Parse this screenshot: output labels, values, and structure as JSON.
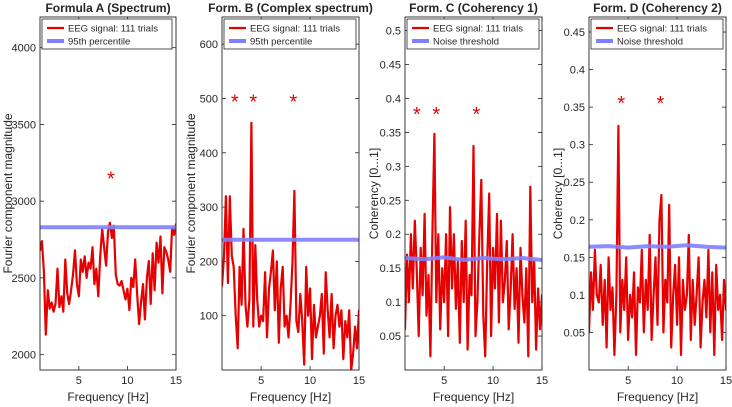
{
  "chart_data": [
    {
      "type": "line",
      "title": "Formula A (Spectrum)",
      "xlabel": "Frequency [Hz]",
      "ylabel": "Fourier component magnitude",
      "xlim": [
        1,
        15
      ],
      "ylim": [
        1900,
        4200
      ],
      "xticks": [
        5,
        10,
        15
      ],
      "yticks": [
        2000,
        2500,
        3000,
        3500,
        4000
      ],
      "legend_position": "top-left",
      "series": [
        {
          "name": "EEG signal: 111 trials",
          "color": "#e60000",
          "x": [
            1,
            1.2,
            1.4,
            1.6,
            1.8,
            2,
            2.2,
            2.4,
            2.6,
            2.8,
            3,
            3.2,
            3.4,
            3.6,
            3.8,
            4,
            4.2,
            4.4,
            4.6,
            4.8,
            5,
            5.2,
            5.4,
            5.6,
            5.8,
            6,
            6.2,
            6.4,
            6.6,
            6.8,
            7,
            7.2,
            7.4,
            7.6,
            7.8,
            8,
            8.2,
            8.4,
            8.6,
            8.8,
            9,
            9.2,
            9.4,
            9.6,
            9.8,
            10,
            10.2,
            10.4,
            10.6,
            10.8,
            11,
            11.2,
            11.4,
            11.6,
            11.8,
            12,
            12.2,
            12.4,
            12.6,
            12.8,
            13,
            13.2,
            13.4,
            13.6,
            13.8,
            14,
            14.2,
            14.4,
            14.6,
            14.8,
            15
          ],
          "y": [
            2680,
            2740,
            2540,
            2130,
            2420,
            2300,
            2340,
            2280,
            2330,
            2560,
            2310,
            2380,
            2280,
            2620,
            2400,
            2330,
            2420,
            2520,
            2680,
            2460,
            2380,
            2620,
            2540,
            2640,
            2500,
            2600,
            2560,
            2700,
            2460,
            2560,
            2380,
            2640,
            2820,
            2700,
            2580,
            2800,
            2860,
            2760,
            2840,
            2520,
            2460,
            2450,
            2480,
            2420,
            2360,
            2430,
            2290,
            2500,
            2440,
            2620,
            2400,
            2200,
            2340,
            2460,
            2230,
            2500,
            2610,
            2330,
            2660,
            2420,
            2730,
            2600,
            2770,
            2400,
            2700,
            2670,
            2620,
            2540,
            2830,
            2780,
            2850
          ]
        },
        {
          "name": "95th percentile",
          "color": "#7f7fff",
          "x": [
            1,
            15
          ],
          "y": [
            2830,
            2830
          ]
        }
      ],
      "markers": [
        {
          "x": 8.3,
          "y": 3160,
          "symbol": "*"
        }
      ]
    },
    {
      "type": "line",
      "title": "Form. B (Complex spectrum)",
      "xlabel": "Frequency [Hz]",
      "ylabel": "Fourier component magnitude",
      "xlim": [
        1,
        15
      ],
      "ylim": [
        0,
        650
      ],
      "xticks": [
        5,
        10,
        15
      ],
      "yticks": [
        100,
        200,
        300,
        400,
        500,
        600
      ],
      "legend_position": "top-left",
      "series": [
        {
          "name": "EEG signal: 111 trials",
          "color": "#e60000",
          "x": [
            1,
            1.2,
            1.4,
            1.6,
            1.8,
            2,
            2.2,
            2.4,
            2.6,
            2.8,
            3,
            3.2,
            3.4,
            3.6,
            3.8,
            4,
            4.2,
            4.4,
            4.6,
            4.8,
            5,
            5.2,
            5.4,
            5.6,
            5.8,
            6,
            6.2,
            6.4,
            6.6,
            6.8,
            7,
            7.2,
            7.4,
            7.6,
            7.8,
            8,
            8.2,
            8.4,
            8.6,
            8.8,
            9,
            9.2,
            9.4,
            9.6,
            9.8,
            10,
            10.2,
            10.4,
            10.6,
            10.8,
            11,
            11.2,
            11.4,
            11.6,
            11.8,
            12,
            12.2,
            12.4,
            12.6,
            12.8,
            13,
            13.2,
            13.4,
            13.6,
            13.8,
            14,
            14.2,
            14.4,
            14.6,
            14.8,
            15
          ],
          "y": [
            155,
            210,
            320,
            160,
            320,
            210,
            190,
            100,
            40,
            190,
            120,
            260,
            120,
            80,
            130,
            455,
            80,
            230,
            130,
            80,
            100,
            90,
            180,
            60,
            150,
            180,
            220,
            110,
            200,
            50,
            150,
            190,
            80,
            100,
            60,
            120,
            200,
            330,
            90,
            70,
            140,
            90,
            10,
            190,
            100,
            150,
            20,
            120,
            60,
            80,
            100,
            140,
            30,
            180,
            110,
            60,
            140,
            40,
            100,
            120,
            80,
            110,
            20,
            90,
            60,
            110,
            0,
            30,
            80,
            40,
            110
          ]
        },
        {
          "name": "95th percentile",
          "color": "#7f7fff",
          "x": [
            1,
            15
          ],
          "y": [
            240,
            240
          ]
        }
      ],
      "markers": [
        {
          "x": 2.3,
          "y": 498,
          "symbol": "*"
        },
        {
          "x": 4.2,
          "y": 498,
          "symbol": "*"
        },
        {
          "x": 8.3,
          "y": 498,
          "symbol": "*"
        }
      ]
    },
    {
      "type": "line",
      "title": "Form. C (Coherency 1)",
      "xlabel": "Frequency [Hz]",
      "ylabel": "Coherency [0...1]",
      "xlim": [
        1,
        15
      ],
      "ylim": [
        0,
        0.52
      ],
      "xticks": [
        5,
        10,
        15
      ],
      "yticks": [
        0.05,
        0.1,
        0.15,
        0.2,
        0.25,
        0.3,
        0.35,
        0.4,
        0.45,
        0.5
      ],
      "legend_position": "top-left",
      "series": [
        {
          "name": "EEG signal: 111 trials",
          "color": "#e60000",
          "x": [
            1,
            1.2,
            1.4,
            1.6,
            1.8,
            2,
            2.2,
            2.4,
            2.6,
            2.8,
            3,
            3.2,
            3.4,
            3.6,
            3.8,
            4,
            4.2,
            4.4,
            4.6,
            4.8,
            5,
            5.2,
            5.4,
            5.6,
            5.8,
            6,
            6.2,
            6.4,
            6.6,
            6.8,
            7,
            7.2,
            7.4,
            7.6,
            7.8,
            8,
            8.2,
            8.4,
            8.6,
            8.8,
            9,
            9.2,
            9.4,
            9.6,
            9.8,
            10,
            10.2,
            10.4,
            10.6,
            10.8,
            11,
            11.2,
            11.4,
            11.6,
            11.8,
            12,
            12.2,
            12.4,
            12.6,
            12.8,
            13,
            13.2,
            13.4,
            13.6,
            13.8,
            14,
            14.2,
            14.4,
            14.6,
            14.8,
            15
          ],
          "y": [
            0.06,
            0.17,
            0.1,
            0.2,
            0.12,
            0.22,
            0.15,
            0.05,
            0.18,
            0.11,
            0.23,
            0.08,
            0.14,
            0.02,
            0.2,
            0.348,
            0.1,
            0.2,
            0.06,
            0.15,
            0.1,
            0.2,
            0.05,
            0.24,
            0.12,
            0.2,
            0.09,
            0.16,
            0.04,
            0.19,
            0.1,
            0.22,
            0.03,
            0.14,
            0.11,
            0.33,
            0.05,
            0.1,
            0.2,
            0.28,
            0.08,
            0.02,
            0.16,
            0.26,
            0.05,
            0.18,
            0.12,
            0.23,
            0.07,
            0.22,
            0.1,
            0.13,
            0.19,
            0.06,
            0.12,
            0.2,
            0.09,
            0.15,
            0.04,
            0.18,
            0.11,
            0.07,
            0.15,
            0.02,
            0.27,
            0.1,
            0.16,
            0.03,
            0.12,
            0.06,
            0.11
          ]
        },
        {
          "name": "Noise threshold",
          "color": "#7f7fff",
          "x": [
            1,
            3,
            5,
            7,
            9,
            11,
            13,
            15
          ],
          "y": [
            0.165,
            0.163,
            0.166,
            0.162,
            0.165,
            0.163,
            0.165,
            0.162
          ]
        }
      ],
      "markers": [
        {
          "x": 2.2,
          "y": 0.38,
          "symbol": "*"
        },
        {
          "x": 4.2,
          "y": 0.38,
          "symbol": "*"
        },
        {
          "x": 8.3,
          "y": 0.38,
          "symbol": "*"
        }
      ]
    },
    {
      "type": "line",
      "title": "Form. D (Coherency 2)",
      "xlabel": "Frequency [Hz]",
      "ylabel": "Coherency [0...1]",
      "xlim": [
        1,
        15
      ],
      "ylim": [
        0,
        0.47
      ],
      "xticks": [
        5,
        10,
        15
      ],
      "yticks": [
        0.05,
        0.1,
        0.15,
        0.2,
        0.25,
        0.3,
        0.35,
        0.4,
        0.45
      ],
      "legend_position": "top-left",
      "series": [
        {
          "name": "EEG signal: 111 trials",
          "color": "#e60000",
          "x": [
            1,
            1.2,
            1.4,
            1.6,
            1.8,
            2,
            2.2,
            2.4,
            2.6,
            2.8,
            3,
            3.2,
            3.4,
            3.6,
            3.8,
            4,
            4.2,
            4.4,
            4.6,
            4.8,
            5,
            5.2,
            5.4,
            5.6,
            5.8,
            6,
            6.2,
            6.4,
            6.6,
            6.8,
            7,
            7.2,
            7.4,
            7.6,
            7.8,
            8,
            8.2,
            8.4,
            8.6,
            8.8,
            9,
            9.2,
            9.4,
            9.6,
            9.8,
            10,
            10.2,
            10.4,
            10.6,
            10.8,
            11,
            11.2,
            11.4,
            11.6,
            11.8,
            12,
            12.2,
            12.4,
            12.6,
            12.8,
            13,
            13.2,
            13.4,
            13.6,
            13.8,
            14,
            14.2,
            14.4,
            14.6,
            14.8,
            15
          ],
          "y": [
            0.05,
            0.13,
            0.08,
            0.16,
            0.1,
            0.09,
            0.14,
            0.06,
            0.12,
            0.03,
            0.15,
            0.08,
            0.11,
            0.02,
            0.1,
            0.325,
            0.05,
            0.12,
            0.08,
            0.15,
            0.04,
            0.1,
            0.07,
            0.13,
            0.02,
            0.11,
            0.09,
            0.16,
            0.05,
            0.12,
            0.08,
            0.18,
            0.04,
            0.1,
            0.15,
            0.06,
            0.2,
            0.233,
            0.05,
            0.12,
            0.09,
            0.22,
            0.03,
            0.1,
            0.14,
            0.06,
            0.15,
            0.02,
            0.12,
            0.08,
            0.1,
            0.18,
            0.04,
            0.12,
            0.06,
            0.1,
            0.15,
            0.03,
            0.09,
            0.12,
            0.07,
            0.16,
            0.05,
            0.13,
            0.02,
            0.14,
            0.08,
            0.1,
            0.04,
            0.12,
            0.08
          ]
        },
        {
          "name": "Noise threshold",
          "color": "#7f7fff",
          "x": [
            1,
            3,
            5,
            7,
            9,
            11,
            13,
            15
          ],
          "y": [
            0.164,
            0.165,
            0.163,
            0.165,
            0.164,
            0.166,
            0.164,
            0.163
          ]
        }
      ],
      "markers": [
        {
          "x": 4.3,
          "y": 0.358,
          "symbol": "*"
        },
        {
          "x": 8.3,
          "y": 0.358,
          "symbol": "*"
        }
      ]
    }
  ]
}
